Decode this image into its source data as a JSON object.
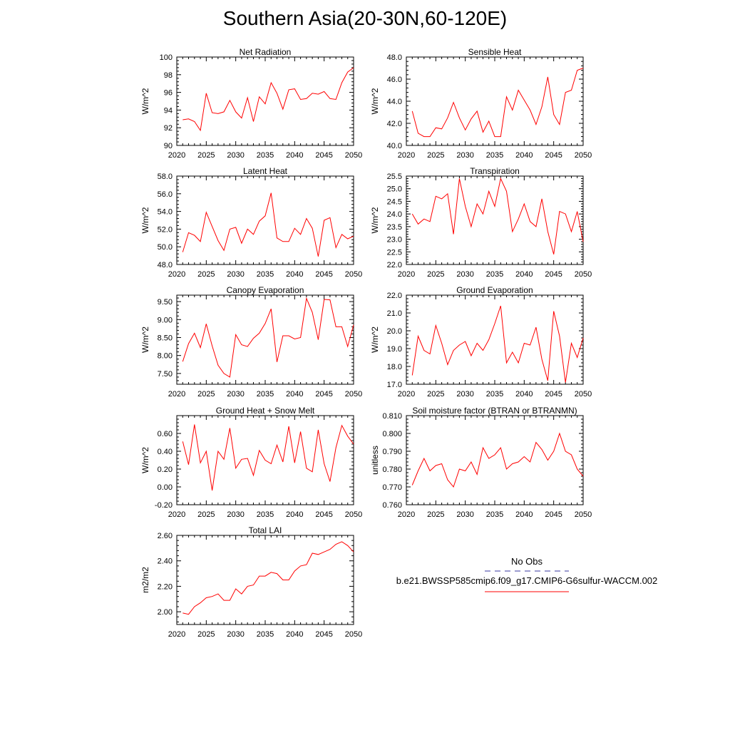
{
  "title": "Southern Asia(20-30N,60-120E)",
  "legend": {
    "obs_label": "No Obs",
    "obs_color": "#3a3aa0",
    "case_label": "b.e21.BWSSP585cmip6.f09_g17.CMIP6-G6sulfur-WACCM.002",
    "case_color": "#ff0000"
  },
  "chart_data": [
    {
      "type": "line",
      "title": "Net Radiation",
      "ylabel": "W/m^2",
      "xlabel": "",
      "x": [
        2021,
        2022,
        2023,
        2024,
        2025,
        2026,
        2027,
        2028,
        2029,
        2030,
        2031,
        2032,
        2033,
        2034,
        2035,
        2036,
        2037,
        2038,
        2039,
        2040,
        2041,
        2042,
        2043,
        2044,
        2045,
        2046,
        2047,
        2048,
        2049,
        2050
      ],
      "series": [
        {
          "name": "b.e21.BWSSP585cmip6.f09_g17.CMIP6-G6sulfur-WACCM.002",
          "values": [
            92.9,
            93.0,
            92.7,
            91.7,
            95.9,
            93.7,
            93.6,
            93.8,
            95.1,
            93.8,
            93.1,
            95.4,
            92.7,
            95.5,
            94.7,
            97.1,
            95.9,
            94.1,
            96.3,
            96.4,
            95.2,
            95.3,
            95.9,
            95.8,
            96.1,
            95.3,
            95.2,
            97.1,
            98.3,
            98.8
          ]
        }
      ],
      "xlim": [
        2020,
        2050
      ],
      "ylim": [
        90,
        100
      ],
      "xticks": [
        2020,
        2025,
        2030,
        2035,
        2040,
        2045,
        2050
      ],
      "yticks": [
        90,
        92,
        94,
        96,
        98,
        100
      ],
      "yticklabels": [
        "90",
        "92",
        "94",
        "96",
        "98",
        "100"
      ]
    },
    {
      "type": "line",
      "title": "Sensible Heat",
      "ylabel": "W/m^2",
      "xlabel": "",
      "x": [
        2021,
        2022,
        2023,
        2024,
        2025,
        2026,
        2027,
        2028,
        2029,
        2030,
        2031,
        2032,
        2033,
        2034,
        2035,
        2036,
        2037,
        2038,
        2039,
        2040,
        2041,
        2042,
        2043,
        2044,
        2045,
        2046,
        2047,
        2048,
        2049,
        2050
      ],
      "series": [
        {
          "name": "b.e21.BWSSP585cmip6.f09_g17.CMIP6-G6sulfur-WACCM.002",
          "values": [
            43.1,
            41.1,
            40.8,
            40.8,
            41.6,
            41.5,
            42.5,
            43.9,
            42.5,
            41.4,
            42.4,
            43.1,
            41.2,
            42.2,
            40.8,
            40.8,
            44.4,
            43.2,
            45.0,
            44.1,
            43.2,
            41.9,
            43.5,
            46.2,
            42.8,
            41.9,
            44.8,
            45.0,
            46.8,
            47.0
          ]
        }
      ],
      "xlim": [
        2020,
        2050
      ],
      "ylim": [
        40,
        48
      ],
      "xticks": [
        2020,
        2025,
        2030,
        2035,
        2040,
        2045,
        2050
      ],
      "yticks": [
        40,
        42,
        44,
        46,
        48
      ],
      "yticklabels": [
        "40.0",
        "42.0",
        "44.0",
        "46.0",
        "48.0"
      ]
    },
    {
      "type": "line",
      "title": "Latent Heat",
      "ylabel": "W/m^2",
      "xlabel": "",
      "x": [
        2021,
        2022,
        2023,
        2024,
        2025,
        2026,
        2027,
        2028,
        2029,
        2030,
        2031,
        2032,
        2033,
        2034,
        2035,
        2036,
        2037,
        2038,
        2039,
        2040,
        2041,
        2042,
        2043,
        2044,
        2045,
        2046,
        2047,
        2048,
        2049,
        2050
      ],
      "series": [
        {
          "name": "b.e21.BWSSP585cmip6.f09_g17.CMIP6-G6sulfur-WACCM.002",
          "values": [
            49.4,
            51.6,
            51.3,
            50.6,
            53.9,
            52.3,
            50.7,
            49.6,
            52.0,
            52.2,
            50.4,
            52.0,
            51.4,
            52.9,
            53.5,
            56.1,
            51.0,
            50.6,
            50.6,
            52.1,
            51.4,
            53.2,
            52.1,
            48.9,
            53.0,
            53.3,
            49.9,
            51.4,
            50.9,
            51.2
          ]
        }
      ],
      "xlim": [
        2020,
        2050
      ],
      "ylim": [
        48,
        58
      ],
      "xticks": [
        2020,
        2025,
        2030,
        2035,
        2040,
        2045,
        2050
      ],
      "yticks": [
        48,
        50,
        52,
        54,
        56,
        58
      ],
      "yticklabels": [
        "48.0",
        "50.0",
        "52.0",
        "54.0",
        "56.0",
        "58.0"
      ]
    },
    {
      "type": "line",
      "title": "Transpiration",
      "ylabel": "W/m^2",
      "xlabel": "",
      "x": [
        2021,
        2022,
        2023,
        2024,
        2025,
        2026,
        2027,
        2028,
        2029,
        2030,
        2031,
        2032,
        2033,
        2034,
        2035,
        2036,
        2037,
        2038,
        2039,
        2040,
        2041,
        2042,
        2043,
        2044,
        2045,
        2046,
        2047,
        2048,
        2049,
        2050
      ],
      "series": [
        {
          "name": "b.e21.BWSSP585cmip6.f09_g17.CMIP6-G6sulfur-WACCM.002",
          "values": [
            24.0,
            23.6,
            23.8,
            23.7,
            24.7,
            24.6,
            24.8,
            23.2,
            25.4,
            24.3,
            23.5,
            24.4,
            24.0,
            24.9,
            24.3,
            25.4,
            24.9,
            23.3,
            23.8,
            24.4,
            23.7,
            23.5,
            24.6,
            23.3,
            22.4,
            24.1,
            24.0,
            23.3,
            24.1,
            22.9
          ]
        }
      ],
      "xlim": [
        2020,
        2050
      ],
      "ylim": [
        22,
        25.5
      ],
      "xticks": [
        2020,
        2025,
        2030,
        2035,
        2040,
        2045,
        2050
      ],
      "yticks": [
        22,
        22.5,
        23,
        23.5,
        24,
        24.5,
        25,
        25.5
      ],
      "yticklabels": [
        "22.0",
        "22.5",
        "23.0",
        "23.5",
        "24.0",
        "24.5",
        "25.0",
        "25.5"
      ]
    },
    {
      "type": "line",
      "title": "Canopy Evaporation",
      "ylabel": "W/m^2",
      "xlabel": "",
      "x": [
        2021,
        2022,
        2023,
        2024,
        2025,
        2026,
        2027,
        2028,
        2029,
        2030,
        2031,
        2032,
        2033,
        2034,
        2035,
        2036,
        2037,
        2038,
        2039,
        2040,
        2041,
        2042,
        2043,
        2044,
        2045,
        2046,
        2047,
        2048,
        2049,
        2050
      ],
      "series": [
        {
          "name": "b.e21.BWSSP585cmip6.f09_g17.CMIP6-G6sulfur-WACCM.002",
          "values": [
            7.83,
            8.33,
            8.62,
            8.22,
            8.88,
            8.27,
            7.73,
            7.5,
            7.4,
            8.58,
            8.3,
            8.25,
            8.48,
            8.62,
            8.89,
            9.3,
            7.82,
            8.55,
            8.55,
            8.46,
            8.5,
            9.59,
            9.2,
            8.44,
            9.56,
            9.55,
            8.8,
            8.8,
            8.25,
            8.85
          ]
        }
      ],
      "xlim": [
        2020,
        2050
      ],
      "ylim": [
        7.2,
        9.68
      ],
      "xticks": [
        2020,
        2025,
        2030,
        2035,
        2040,
        2045,
        2050
      ],
      "yticks": [
        7.5,
        8.0,
        8.5,
        9.0,
        9.5
      ],
      "yticklabels": [
        "7.50",
        "8.00",
        "8.50",
        "9.00",
        "9.50"
      ]
    },
    {
      "type": "line",
      "title": "Ground Evaporation",
      "ylabel": "W/m^2",
      "xlabel": "",
      "x": [
        2021,
        2022,
        2023,
        2024,
        2025,
        2026,
        2027,
        2028,
        2029,
        2030,
        2031,
        2032,
        2033,
        2034,
        2035,
        2036,
        2037,
        2038,
        2039,
        2040,
        2041,
        2042,
        2043,
        2044,
        2045,
        2046,
        2047,
        2048,
        2049,
        2050
      ],
      "series": [
        {
          "name": "b.e21.BWSSP585cmip6.f09_g17.CMIP6-G6sulfur-WACCM.002",
          "values": [
            17.5,
            19.7,
            18.9,
            18.7,
            20.3,
            19.3,
            18.1,
            18.9,
            19.2,
            19.4,
            18.6,
            19.3,
            18.9,
            19.5,
            20.4,
            21.4,
            18.2,
            18.8,
            18.2,
            19.3,
            19.2,
            20.2,
            18.4,
            17.2,
            21.1,
            19.7,
            17.1,
            19.3,
            18.5,
            19.6
          ]
        }
      ],
      "xlim": [
        2020,
        2050
      ],
      "ylim": [
        17,
        22
      ],
      "xticks": [
        2020,
        2025,
        2030,
        2035,
        2040,
        2045,
        2050
      ],
      "yticks": [
        17,
        18,
        19,
        20,
        21,
        22
      ],
      "yticklabels": [
        "17.0",
        "18.0",
        "19.0",
        "20.0",
        "21.0",
        "22.0"
      ]
    },
    {
      "type": "line",
      "title": "Ground Heat + Snow Melt",
      "ylabel": "W/m^2",
      "xlabel": "",
      "x": [
        2021,
        2022,
        2023,
        2024,
        2025,
        2026,
        2027,
        2028,
        2029,
        2030,
        2031,
        2032,
        2033,
        2034,
        2035,
        2036,
        2037,
        2038,
        2039,
        2040,
        2041,
        2042,
        2043,
        2044,
        2045,
        2046,
        2047,
        2048,
        2049,
        2050
      ],
      "series": [
        {
          "name": "b.e21.BWSSP585cmip6.f09_g17.CMIP6-G6sulfur-WACCM.002",
          "values": [
            0.51,
            0.25,
            0.7,
            0.27,
            0.4,
            -0.04,
            0.4,
            0.31,
            0.66,
            0.21,
            0.31,
            0.32,
            0.13,
            0.41,
            0.3,
            0.26,
            0.47,
            0.28,
            0.68,
            0.27,
            0.62,
            0.21,
            0.17,
            0.64,
            0.26,
            0.06,
            0.44,
            0.69,
            0.57,
            0.48
          ]
        }
      ],
      "xlim": [
        2020,
        2050
      ],
      "ylim": [
        -0.2,
        0.8
      ],
      "xticks": [
        2020,
        2025,
        2030,
        2035,
        2040,
        2045,
        2050
      ],
      "yticks": [
        -0.2,
        0,
        0.2,
        0.4,
        0.6
      ],
      "yticklabels": [
        "-0.20",
        "0.00",
        "0.20",
        "0.40",
        "0.60"
      ]
    },
    {
      "type": "line",
      "title": "Soil moisture factor (BTRAN or BTRANMN)",
      "ylabel": "unitless",
      "xlabel": "",
      "x": [
        2021,
        2022,
        2023,
        2024,
        2025,
        2026,
        2027,
        2028,
        2029,
        2030,
        2031,
        2032,
        2033,
        2034,
        2035,
        2036,
        2037,
        2038,
        2039,
        2040,
        2041,
        2042,
        2043,
        2044,
        2045,
        2046,
        2047,
        2048,
        2049,
        2050
      ],
      "series": [
        {
          "name": "b.e21.BWSSP585cmip6.f09_g17.CMIP6-G6sulfur-WACCM.002",
          "values": [
            0.771,
            0.779,
            0.786,
            0.779,
            0.782,
            0.783,
            0.774,
            0.77,
            0.78,
            0.779,
            0.784,
            0.777,
            0.792,
            0.786,
            0.788,
            0.792,
            0.78,
            0.783,
            0.784,
            0.787,
            0.784,
            0.795,
            0.791,
            0.785,
            0.79,
            0.8,
            0.79,
            0.788,
            0.78,
            0.776
          ]
        }
      ],
      "xlim": [
        2020,
        2050
      ],
      "ylim": [
        0.76,
        0.81
      ],
      "xticks": [
        2020,
        2025,
        2030,
        2035,
        2040,
        2045,
        2050
      ],
      "yticks": [
        0.76,
        0.77,
        0.78,
        0.79,
        0.8,
        0.81
      ],
      "yticklabels": [
        "0.760",
        "0.770",
        "0.780",
        "0.790",
        "0.800",
        "0.810"
      ]
    },
    {
      "type": "line",
      "title": "Total LAI",
      "ylabel": "m2/m2",
      "xlabel": "",
      "x": [
        2021,
        2022,
        2023,
        2024,
        2025,
        2026,
        2027,
        2028,
        2029,
        2030,
        2031,
        2032,
        2033,
        2034,
        2035,
        2036,
        2037,
        2038,
        2039,
        2040,
        2041,
        2042,
        2043,
        2044,
        2045,
        2046,
        2047,
        2048,
        2049,
        2050
      ],
      "series": [
        {
          "name": "b.e21.BWSSP585cmip6.f09_g17.CMIP6-G6sulfur-WACCM.002",
          "values": [
            1.99,
            1.98,
            2.04,
            2.07,
            2.11,
            2.12,
            2.14,
            2.09,
            2.09,
            2.18,
            2.14,
            2.2,
            2.21,
            2.28,
            2.28,
            2.31,
            2.3,
            2.25,
            2.25,
            2.32,
            2.36,
            2.37,
            2.46,
            2.45,
            2.47,
            2.49,
            2.53,
            2.55,
            2.52,
            2.47
          ]
        }
      ],
      "xlim": [
        2020,
        2050
      ],
      "ylim": [
        1.9,
        2.6
      ],
      "xticks": [
        2020,
        2025,
        2030,
        2035,
        2040,
        2045,
        2050
      ],
      "yticks": [
        2.0,
        2.2,
        2.4,
        2.6
      ],
      "yticklabels": [
        "2.00",
        "2.20",
        "2.40",
        "2.60"
      ]
    }
  ]
}
